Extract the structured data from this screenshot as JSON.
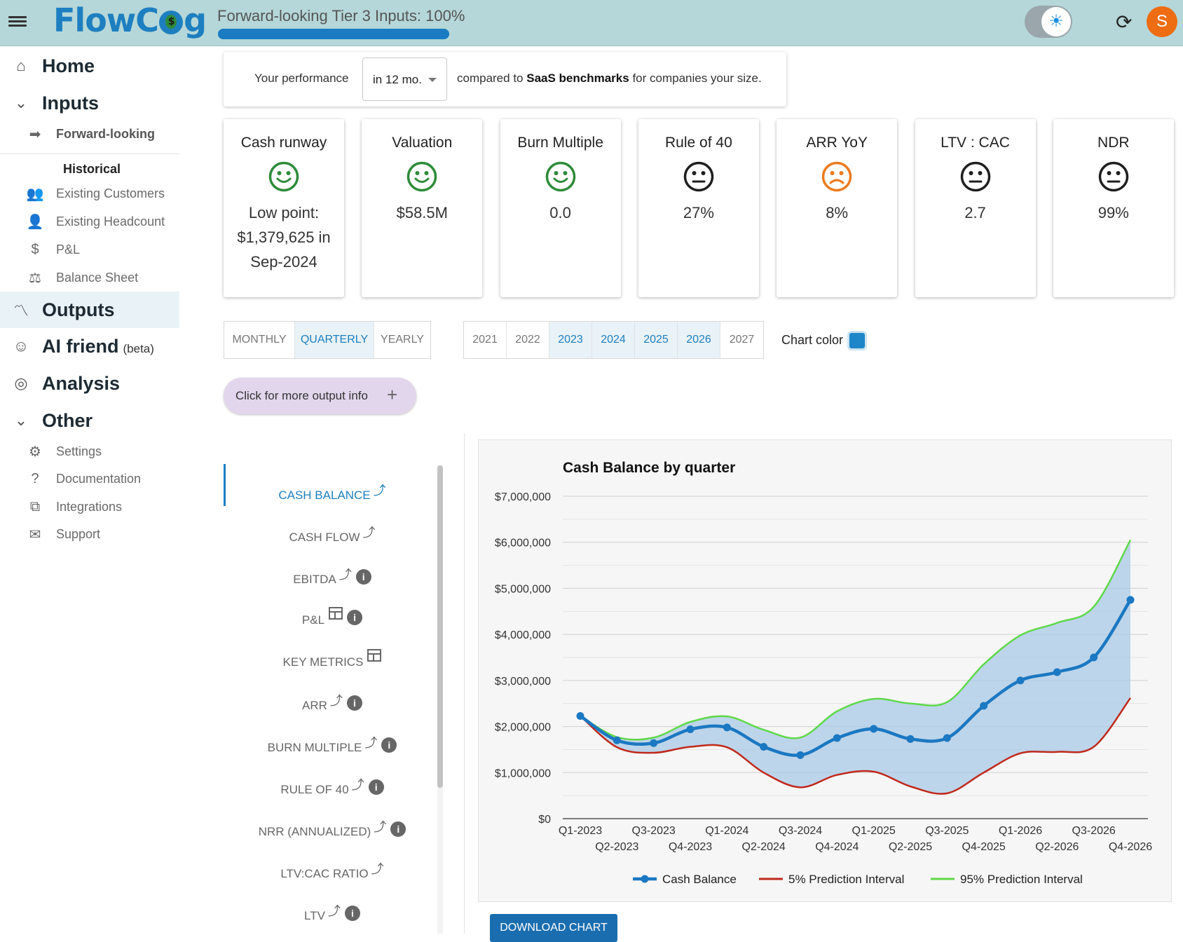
{
  "header": {
    "logo": "FlowCog",
    "progress_title": "Forward-looking Tier 3 Inputs: 100%",
    "progress_fraction": 1.0,
    "avatar_initial": "S"
  },
  "sidebar": {
    "home": "Home",
    "inputs": "Inputs",
    "forward_looking": "Forward-looking",
    "historical_heading": "Historical",
    "historical_items": [
      "Existing Customers",
      "Existing Headcount",
      "P&L",
      "Balance Sheet"
    ],
    "outputs": "Outputs",
    "ai_friend": "AI friend",
    "ai_beta": "(beta)",
    "analysis": "Analysis",
    "other": "Other",
    "other_items": [
      "Settings",
      "Documentation",
      "Integrations",
      "Support"
    ]
  },
  "performance": {
    "prefix": "Your performance",
    "selected": "in 12 mo.",
    "compared_to": "compared to",
    "benchmark": "SaaS benchmarks",
    "suffix": "for companies your size."
  },
  "metrics": [
    {
      "title": "Cash runway",
      "mood": "happy",
      "value": "Low point: $1,379,625 in Sep-2024"
    },
    {
      "title": "Valuation",
      "mood": "happy",
      "value": "$58.5M"
    },
    {
      "title": "Burn Multiple",
      "mood": "happy",
      "value": "0.0"
    },
    {
      "title": "Rule of 40",
      "mood": "neutral",
      "value": "27%"
    },
    {
      "title": "ARR YoY",
      "mood": "sad",
      "value": "8%"
    },
    {
      "title": "LTV : CAC",
      "mood": "neutral",
      "value": "2.7"
    },
    {
      "title": "NDR",
      "mood": "neutral",
      "value": "99%"
    }
  ],
  "period_tabs": [
    "MONTHLY",
    "QUARTERLY",
    "YEARLY"
  ],
  "period_selected": "QUARTERLY",
  "years": [
    "2021",
    "2022",
    "2023",
    "2024",
    "2025",
    "2026",
    "2027"
  ],
  "years_selected": [
    "2023",
    "2024",
    "2025",
    "2026"
  ],
  "chart_color_label": "Chart color",
  "chart_color": "#1d86c8",
  "more_info": "Click for more output info",
  "outputs_list": [
    {
      "label": "CASH BALANCE",
      "icons": [
        "trend-icon"
      ]
    },
    {
      "label": "CASH FLOW",
      "icons": [
        "trend-icon"
      ]
    },
    {
      "label": "EBITDA",
      "icons": [
        "trend-icon",
        "info-icon"
      ]
    },
    {
      "label": "P&L",
      "icons": [
        "table-icon",
        "info-icon"
      ]
    },
    {
      "label": "KEY METRICS",
      "icons": [
        "table-icon"
      ]
    },
    {
      "label": "ARR",
      "icons": [
        "trend-icon",
        "info-icon"
      ]
    },
    {
      "label": "BURN MULTIPLE",
      "icons": [
        "trend-icon",
        "info-icon"
      ]
    },
    {
      "label": "RULE OF 40",
      "icons": [
        "trend-icon",
        "info-icon"
      ]
    },
    {
      "label": "NRR (ANNUALIZED)",
      "icons": [
        "trend-icon",
        "info-icon"
      ]
    },
    {
      "label": "LTV:CAC RATIO",
      "icons": [
        "trend-icon"
      ]
    },
    {
      "label": "LTV",
      "icons": [
        "trend-icon",
        "info-icon"
      ]
    }
  ],
  "outputs_active": "CASH BALANCE",
  "download_label": "DOWNLOAD CHART",
  "colors": {
    "accent": "#1d7fc0",
    "low_band": "#c0281c",
    "high_band": "#5fd84a",
    "band_fill": "#a9c9e6"
  },
  "chart_data": {
    "type": "line",
    "title": "Cash Balance by quarter",
    "categories": [
      "Q1-2023",
      "Q2-2023",
      "Q3-2023",
      "Q4-2023",
      "Q1-2024",
      "Q2-2024",
      "Q3-2024",
      "Q4-2024",
      "Q1-2025",
      "Q2-2025",
      "Q3-2025",
      "Q4-2025",
      "Q1-2026",
      "Q2-2026",
      "Q3-2026",
      "Q4-2026"
    ],
    "yticks": [
      "$0",
      "$1,000,000",
      "$2,000,000",
      "$3,000,000",
      "$4,000,000",
      "$5,000,000",
      "$6,000,000",
      "$7,000,000"
    ],
    "ylim": [
      0,
      7000000
    ],
    "series": [
      {
        "name": "Cash Balance",
        "color": "#1b78c2",
        "values": [
          2230000,
          1700000,
          1640000,
          1940000,
          1980000,
          1560000,
          1380000,
          1750000,
          1950000,
          1730000,
          1750000,
          2450000,
          3000000,
          3180000,
          3500000,
          4750000
        ]
      },
      {
        "name": "5% Prediction Interval",
        "color": "#c0281c",
        "values": [
          2230000,
          1550000,
          1430000,
          1560000,
          1550000,
          1000000,
          680000,
          950000,
          1020000,
          700000,
          550000,
          1000000,
          1420000,
          1450000,
          1560000,
          2620000
        ]
      },
      {
        "name": "95% Prediction Interval",
        "color": "#5fd84a",
        "values": [
          2230000,
          1770000,
          1760000,
          2100000,
          2220000,
          1930000,
          1760000,
          2330000,
          2600000,
          2500000,
          2530000,
          3350000,
          3980000,
          4250000,
          4600000,
          6050000
        ]
      }
    ],
    "legend_position": "bottom",
    "grid": true
  }
}
